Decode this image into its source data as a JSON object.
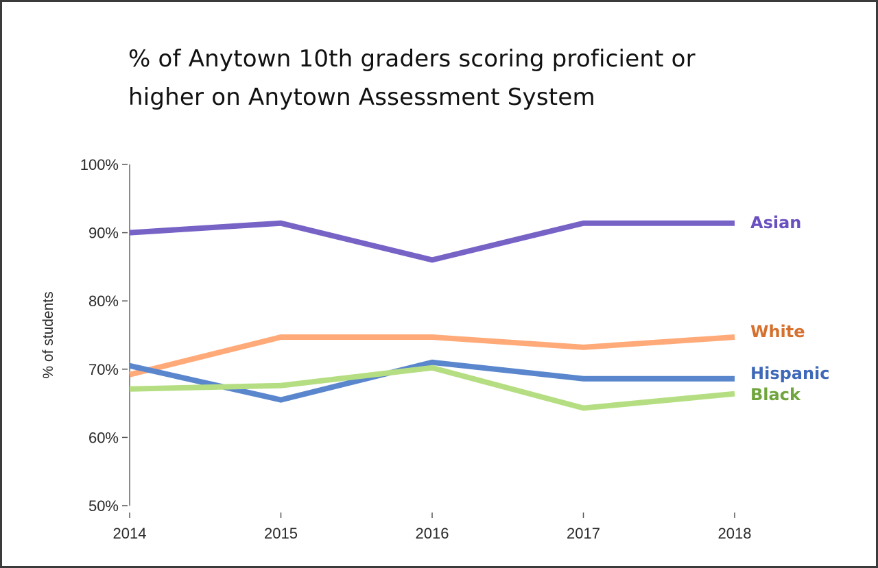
{
  "chart_data": {
    "type": "line",
    "title_lines": [
      "% of Anytown 10th graders scoring proficient or",
      "higher on Anytown Assessment System"
    ],
    "title": "% of Anytown 10th graders scoring proficient or higher on Anytown Assessment System",
    "ylabel": "% of students",
    "x": [
      "2014",
      "2015",
      "2016",
      "2017",
      "2018"
    ],
    "ylim": [
      50,
      100
    ],
    "yticks": [
      50,
      60,
      70,
      80,
      90,
      100
    ],
    "ytick_labels": [
      "50%",
      "60%",
      "70%",
      "80%",
      "90%",
      "100%"
    ],
    "grid": false,
    "legend": "direct labels at right end of lines",
    "series": [
      {
        "name": "Asian",
        "values": [
          90.0,
          91.4,
          86.0,
          91.4,
          91.4
        ],
        "color": "#7762c6",
        "label_color": "#6a4fc0"
      },
      {
        "name": "White",
        "values": [
          69.2,
          74.7,
          74.7,
          73.2,
          74.7
        ],
        "color": "#ffaa78",
        "label_color": "#d6702e"
      },
      {
        "name": "Hispanic",
        "values": [
          70.5,
          65.5,
          71.0,
          68.6,
          68.6
        ],
        "color": "#5a86cd",
        "label_color": "#3f69b8"
      },
      {
        "name": "Black",
        "values": [
          67.1,
          67.6,
          70.2,
          64.3,
          66.4
        ],
        "color": "#b5de82",
        "label_color": "#6fa53c"
      }
    ]
  }
}
